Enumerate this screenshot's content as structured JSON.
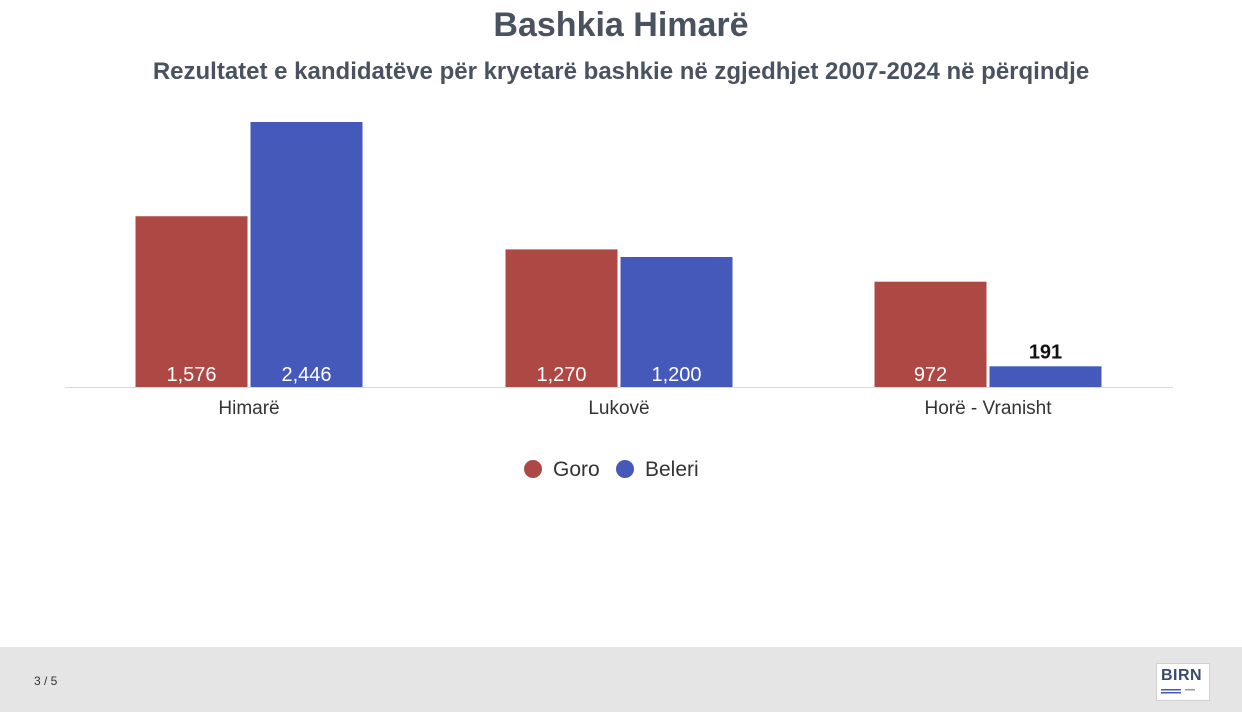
{
  "title": "Bashkia Himarë",
  "subtitle": "Rezultatet e kandidatëve për kryetarë bashkie në zgjedhjet 2007-2024 në përqindje",
  "footer": {
    "page_counter": "3 / 5",
    "logo_text": "BIRN"
  },
  "colors": {
    "goro": "#ad4845",
    "beleri": "#4459b9",
    "axis": "#d9d9d9",
    "text": "#333333"
  },
  "chart_data": {
    "type": "bar",
    "title": "Bashkia Himarë",
    "subtitle": "Rezultatet e kandidatëve për kryetarë bashkie në zgjedhjet 2007-2024 në përqindje",
    "categories": [
      "Himarë",
      "Lukovë",
      "Horë - Vranisht"
    ],
    "series": [
      {
        "name": "Goro",
        "values": [
          1576,
          1270,
          972
        ],
        "labels": [
          "1,576",
          "1,270",
          "972"
        ]
      },
      {
        "name": "Beleri",
        "values": [
          2446,
          1200,
          191
        ],
        "labels": [
          "2,446",
          "1,200",
          "191"
        ]
      }
    ],
    "ylim": [
      0,
      2446
    ],
    "grid": false,
    "legend": "bottom"
  }
}
